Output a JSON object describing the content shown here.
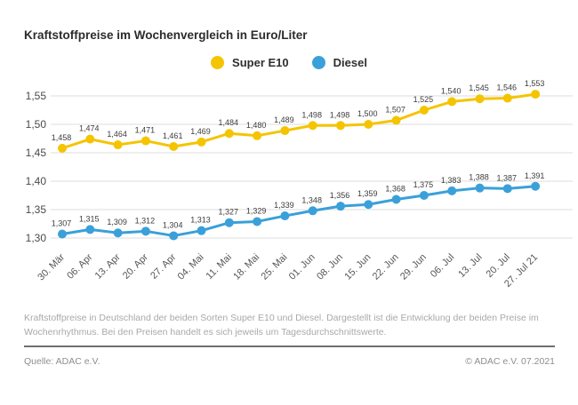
{
  "title": "Kraftstoffpreise im Wochenvergleich in Euro/Liter",
  "chart_data": {
    "type": "line",
    "categories": [
      "30. Mär",
      "06. Apr",
      "13. Apr",
      "20. Apr",
      "27. Apr",
      "04. Mai",
      "11. Mai",
      "18. Mai",
      "25. Mai",
      "01. Jun",
      "08. Jun",
      "15. Jun",
      "22. Jun",
      "29. Jun",
      "06. Jul",
      "13. Jul",
      "20. Jul",
      "27. Jul 21"
    ],
    "series": [
      {
        "name": "Super E10",
        "color": "#F5C400",
        "values": [
          1.458,
          1.474,
          1.464,
          1.471,
          1.461,
          1.469,
          1.484,
          1.48,
          1.489,
          1.498,
          1.498,
          1.5,
          1.507,
          1.525,
          1.54,
          1.545,
          1.546,
          1.553
        ]
      },
      {
        "name": "Diesel",
        "color": "#3AA0D9",
        "values": [
          1.307,
          1.315,
          1.309,
          1.312,
          1.304,
          1.313,
          1.327,
          1.329,
          1.339,
          1.348,
          1.356,
          1.359,
          1.368,
          1.375,
          1.383,
          1.388,
          1.387,
          1.391
        ]
      }
    ],
    "ylim": [
      1.3,
      1.55
    ],
    "ytick_values": [
      1.55,
      1.5,
      1.45,
      1.4,
      1.35,
      1.3
    ],
    "ytick_labels": [
      "1,55",
      "1,50",
      "1,45",
      "1,40",
      "1,35",
      "1,30"
    ],
    "grid": true,
    "legend_position": "top-center",
    "value_label_format": "german-comma-3-decimals",
    "gridline_color": "#dcdcdc"
  },
  "footer": {
    "description": "Kraftstoffpreise in Deutschland der beiden Sorten Super E10 und Diesel. Dargestellt ist die Entwicklung der beiden Preise im Wochenrhythmus. Bei den Preisen handelt es sich jeweils um Tagesdurchschnittswerte.",
    "source": "Quelle: ADAC e.V.",
    "copyright": "© ADAC e.V. 07.2021"
  }
}
